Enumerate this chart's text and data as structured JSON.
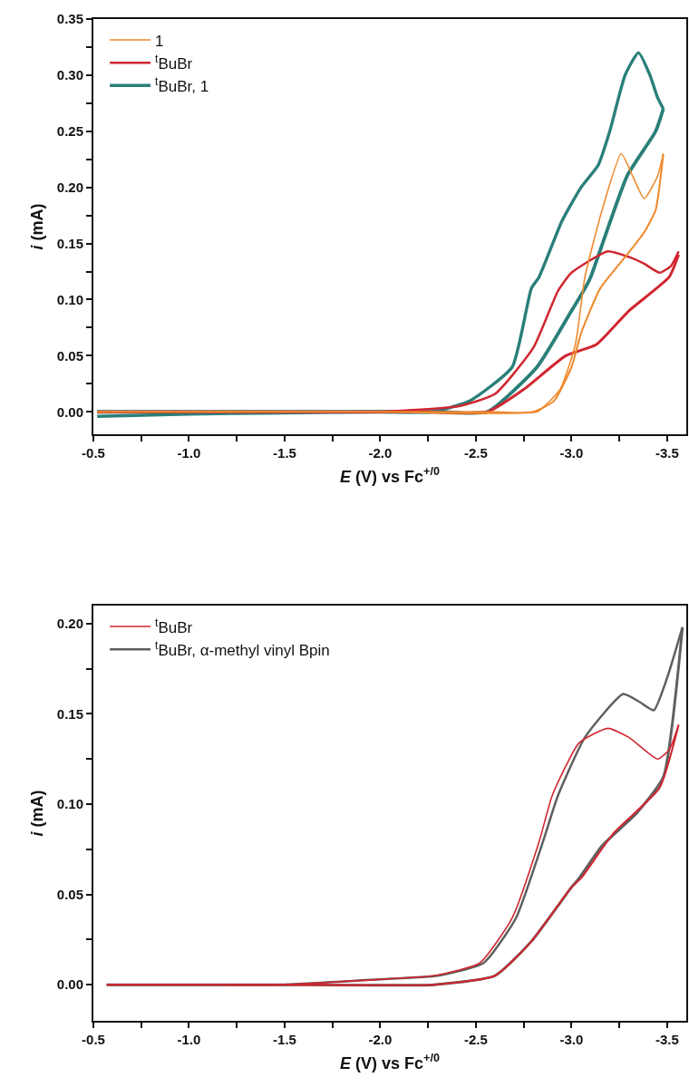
{
  "chart_data": [
    {
      "type": "line",
      "xlabel": "E (V) vs Fc$^{+/0}$",
      "ylabel": "i (mA)",
      "xlim": [
        -0.5,
        -3.6
      ],
      "ylim": [
        -0.02,
        0.35
      ],
      "legend": "top left",
      "xticks": [
        {
          "value": -0.5,
          "label": "-0.5"
        },
        {
          "value": -0.75,
          "label": null
        },
        {
          "value": -1.0,
          "label": "-1.0"
        },
        {
          "value": -1.25,
          "label": null
        },
        {
          "value": -1.5,
          "label": "-1.5"
        },
        {
          "value": -1.75,
          "label": null
        },
        {
          "value": -2.0,
          "label": "-2.0"
        },
        {
          "value": -2.25,
          "label": null
        },
        {
          "value": -2.5,
          "label": "-2.5"
        },
        {
          "value": -2.75,
          "label": null
        },
        {
          "value": -3.0,
          "label": "-3.0"
        },
        {
          "value": -3.25,
          "label": null
        },
        {
          "value": -3.5,
          "label": "-3.5"
        }
      ],
      "yticks": [
        {
          "value": 0,
          "label": "0.00"
        },
        {
          "value": 0.025,
          "label": null
        },
        {
          "value": 0.05,
          "label": "0.05"
        },
        {
          "value": 0.075,
          "label": null
        },
        {
          "value": 0.1,
          "label": "0.10"
        },
        {
          "value": 0.125,
          "label": null
        },
        {
          "value": 0.15,
          "label": "0.15"
        },
        {
          "value": 0.175,
          "label": null
        },
        {
          "value": 0.2,
          "label": "0.20"
        },
        {
          "value": 0.225,
          "label": null
        },
        {
          "value": 0.25,
          "label": "0.25"
        },
        {
          "value": 0.275,
          "label": null
        },
        {
          "value": 0.3,
          "label": "0.30"
        },
        {
          "value": 0.325,
          "label": null
        },
        {
          "value": 0.35,
          "label": "0.35"
        }
      ],
      "series": [
        {
          "name": "1",
          "color": "#ef8a2e",
          "x": [
            -0.52,
            -1.0,
            -2.0,
            -2.6,
            -2.82,
            -2.94,
            -3.02,
            -3.07,
            -3.16,
            -3.26,
            -3.32,
            -3.38,
            -3.45,
            -3.48
          ],
          "values": [
            0.0,
            0.0,
            0.0,
            0.0,
            0.0,
            0.02,
            0.06,
            0.12,
            0.18,
            0.23,
            0.21,
            0.19,
            0.21,
            0.23
          ]
        },
        {
          "color": "#ef8a2e",
          "x": [
            -3.48,
            -3.44,
            -3.38,
            -3.29,
            -3.15,
            -3.05,
            -3.0,
            -2.91,
            -2.8,
            -2.0,
            -0.52
          ],
          "values": [
            0.23,
            0.18,
            0.16,
            0.14,
            0.11,
            0.07,
            0.04,
            0.01,
            0.0,
            0.0,
            0.0
          ]
        },
        {
          "name": "$^{t}$BuBr",
          "color": "#d0262f",
          "x": [
            -0.52,
            -1.5,
            -2.0,
            -2.41,
            -2.6,
            -2.8,
            -2.93,
            -3.0,
            -3.19,
            -3.3,
            -3.38,
            -3.46,
            -3.52,
            -3.56
          ],
          "values": [
            0.0,
            0.0,
            0.0,
            0.005,
            0.016,
            0.057,
            0.108,
            0.124,
            0.143,
            0.138,
            0.132,
            0.124,
            0.13,
            0.143
          ]
        },
        {
          "color": "#d0262f",
          "x": [
            -3.56,
            -3.51,
            -3.3,
            -3.13,
            -2.97,
            -2.75,
            -2.56,
            -2.2,
            -1.5,
            -0.52
          ],
          "values": [
            0.14,
            0.12,
            0.09,
            0.06,
            0.05,
            0.02,
            0.0,
            0.0,
            0.0,
            0.0
          ]
        },
        {
          "name": "$^{t}$BuBr, 1",
          "color": "#2a7f79",
          "x": [
            -0.52,
            -1.0,
            -1.5,
            -2.0,
            -2.28,
            -2.47,
            -2.69,
            -2.79,
            -2.83,
            -2.95,
            -3.05,
            -3.14,
            -3.2,
            -3.28,
            -3.35,
            -3.41,
            -3.45,
            -3.48
          ],
          "values": [
            -0.004,
            -0.002,
            -0.001,
            0.0,
            0.0,
            0.01,
            0.04,
            0.11,
            0.12,
            0.17,
            0.2,
            0.22,
            0.25,
            0.3,
            0.32,
            0.3,
            0.28,
            0.27
          ]
        },
        {
          "color": "#2a7f79",
          "x": [
            -3.48,
            -3.44,
            -3.29,
            -3.1,
            -3.07,
            -3.0,
            -2.82,
            -2.56,
            -2.3,
            -2.0,
            -1.5,
            -0.52
          ],
          "values": [
            0.27,
            0.25,
            0.21,
            0.12,
            0.11,
            0.09,
            0.04,
            0.0,
            0.0,
            0.0,
            0.0,
            0.0
          ]
        }
      ]
    },
    {
      "type": "line",
      "xlabel": "E (V) vs Fc$^{+/0}$",
      "ylabel": "i (mA)",
      "xlim": [
        -0.5,
        -3.6
      ],
      "ylim": [
        -0.02,
        0.21
      ],
      "legend": "top left",
      "xticks": [
        {
          "value": -0.5,
          "label": "-0.5"
        },
        {
          "value": -0.75,
          "label": null
        },
        {
          "value": -1.0,
          "label": "-1.0"
        },
        {
          "value": -1.25,
          "label": null
        },
        {
          "value": -1.5,
          "label": "-1.5"
        },
        {
          "value": -1.75,
          "label": null
        },
        {
          "value": -2.0,
          "label": "-2.0"
        },
        {
          "value": -2.25,
          "label": null
        },
        {
          "value": -2.5,
          "label": "-2.5"
        },
        {
          "value": -2.75,
          "label": null
        },
        {
          "value": -3.0,
          "label": "-3.0"
        },
        {
          "value": -3.25,
          "label": null
        },
        {
          "value": -3.5,
          "label": "-3.5"
        }
      ],
      "yticks": [
        {
          "value": 0,
          "label": "0.00"
        },
        {
          "value": 0.025,
          "label": null
        },
        {
          "value": 0.05,
          "label": "0.05"
        },
        {
          "value": 0.075,
          "label": null
        },
        {
          "value": 0.1,
          "label": "0.10"
        },
        {
          "value": 0.125,
          "label": null
        },
        {
          "value": 0.15,
          "label": "0.15"
        },
        {
          "value": 0.175,
          "label": null
        },
        {
          "value": 0.2,
          "label": "0.20"
        }
      ],
      "series": [
        {
          "name": "$^{t}$BuBr",
          "color": "#d0262f",
          "x": [
            -0.57,
            -1.0,
            -1.5,
            -2.0,
            -2.28,
            -2.52,
            -2.69,
            -2.83,
            -2.9,
            -3.04,
            -3.19,
            -3.3,
            -3.45,
            -3.51,
            -3.56
          ],
          "values": [
            0.0,
            0.0,
            0.0,
            0.003,
            0.005,
            0.012,
            0.037,
            0.079,
            0.105,
            0.134,
            0.142,
            0.137,
            0.125,
            0.13,
            0.144
          ]
        },
        {
          "color": "#d0262f",
          "x": [
            -3.56,
            -3.46,
            -3.22,
            -3.05,
            -3.0,
            -2.79,
            -2.6,
            -2.28,
            -1.5,
            -1.0,
            -0.57
          ],
          "values": [
            0.144,
            0.109,
            0.084,
            0.059,
            0.054,
            0.024,
            0.005,
            0.0,
            0.0,
            0.0,
            0.0
          ]
        },
        {
          "name": "$^{t}$BuBr, α-methyl vinyl Bpin",
          "color": "#5f5f5f",
          "x": [
            -0.57,
            -1.0,
            -1.5,
            -2.0,
            -2.3,
            -2.54,
            -2.71,
            -2.85,
            -2.93,
            -3.07,
            -3.27,
            -3.35,
            -3.43,
            -3.5,
            -3.58
          ],
          "values": [
            0.0,
            0.0,
            0.0,
            0.003,
            0.005,
            0.012,
            0.037,
            0.079,
            0.105,
            0.137,
            0.161,
            0.157,
            0.152,
            0.17,
            0.198
          ]
        },
        {
          "color": "#5f5f5f",
          "x": [
            -3.58,
            -3.48,
            -3.34,
            -3.16,
            -3.04,
            -3.0,
            -2.79,
            -2.6,
            -2.28,
            -1.5,
            -1.0,
            -0.57
          ],
          "values": [
            0.198,
            0.115,
            0.095,
            0.077,
            0.059,
            0.054,
            0.024,
            0.005,
            0.0,
            0.0,
            0.0,
            0.0
          ]
        }
      ]
    }
  ]
}
